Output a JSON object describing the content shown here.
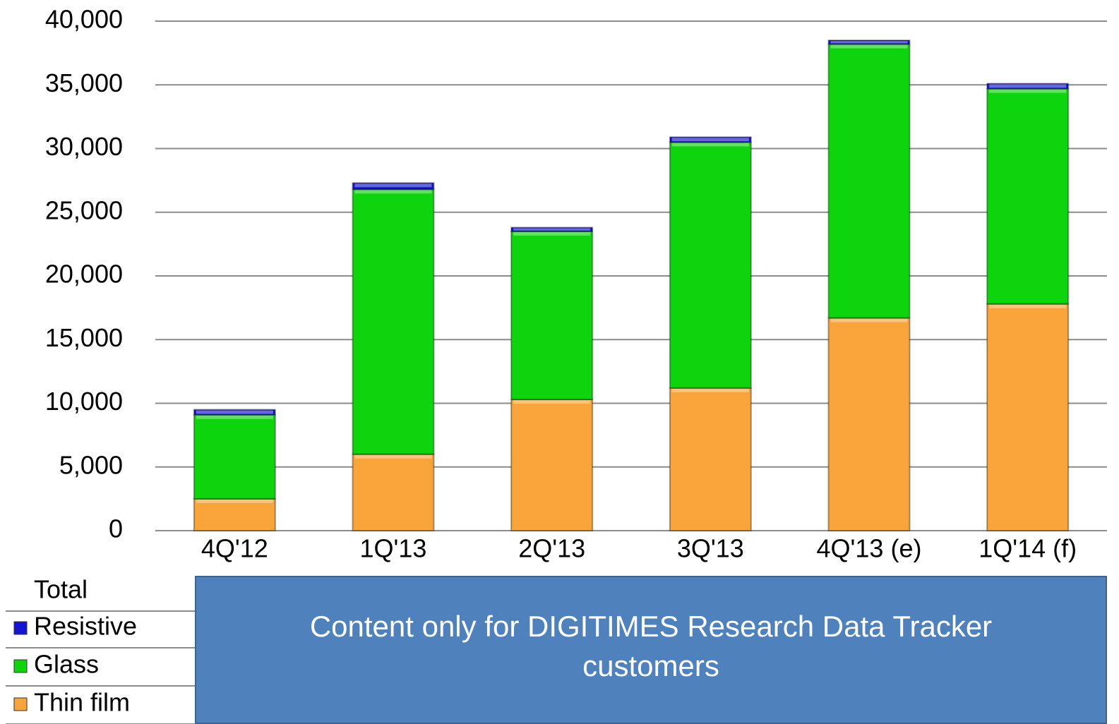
{
  "chart_data": {
    "type": "stacked_bar",
    "categories": [
      "4Q'12",
      "1Q'13",
      "2Q'13",
      "3Q'13",
      "4Q'13 (e)",
      "1Q'14 (f)"
    ],
    "series": [
      {
        "name": "Thin film",
        "color": "#f9a43a",
        "values": [
          2500,
          6000,
          10300,
          11200,
          16700,
          17800
        ]
      },
      {
        "name": "Glass",
        "color": "#0dd40d",
        "values": [
          6600,
          20800,
          13200,
          19300,
          21500,
          16900
        ]
      },
      {
        "name": "Resistive",
        "color": "#1414d2",
        "values": [
          400,
          500,
          300,
          400,
          300,
          400
        ]
      }
    ],
    "ylim": [
      0,
      40000
    ],
    "yticks": [
      0,
      {
        "value": 5000,
        "label": "5,000"
      },
      {
        "value": 10000,
        "label": "10,000"
      },
      {
        "value": 15000,
        "label": "15,000"
      },
      {
        "value": 20000,
        "label": "20,000"
      },
      {
        "value": 25000,
        "label": "25,000"
      },
      {
        "value": 30000,
        "label": "30,000"
      },
      {
        "value": 35000,
        "label": "35,000"
      },
      {
        "value": 40000,
        "label": "40,000"
      }
    ],
    "grid": true,
    "legend_title": "Total",
    "overlay_text": "Content only for DIGITIMES Research Data Tracker customers"
  }
}
